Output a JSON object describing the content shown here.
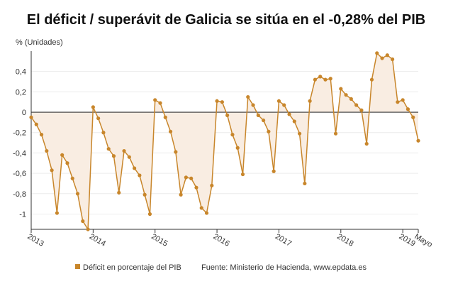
{
  "chart_data": {
    "type": "line",
    "title": "El déficit / superávit de Galicia se sitúa en el -0,28% del PIB",
    "y_label": "% (Unidades)",
    "source": "Fuente: Ministerio de Hacienda, www.epdata.es",
    "categories": [
      "2013",
      null,
      null,
      null,
      null,
      null,
      null,
      null,
      null,
      null,
      null,
      null,
      "2014",
      null,
      null,
      null,
      null,
      null,
      null,
      null,
      null,
      null,
      null,
      null,
      "2015",
      null,
      null,
      null,
      null,
      null,
      null,
      null,
      null,
      null,
      null,
      null,
      "2016",
      null,
      null,
      null,
      null,
      null,
      null,
      null,
      null,
      null,
      null,
      null,
      "2017",
      null,
      null,
      null,
      null,
      null,
      null,
      null,
      null,
      null,
      null,
      null,
      "2018",
      null,
      null,
      null,
      null,
      null,
      null,
      null,
      null,
      null,
      null,
      null,
      "2019",
      null,
      null,
      "Mayo"
    ],
    "series": [
      {
        "name": "Déficit en porcentaje del PIB",
        "color": "#c8862b",
        "values": [
          -0.05,
          -0.12,
          -0.22,
          -0.38,
          -0.57,
          -0.99,
          -0.42,
          -0.5,
          -0.65,
          -0.8,
          -1.07,
          -1.15,
          0.05,
          -0.06,
          -0.2,
          -0.36,
          -0.43,
          -0.79,
          -0.38,
          -0.44,
          -0.55,
          -0.62,
          -0.81,
          -1.0,
          0.12,
          0.09,
          -0.05,
          -0.19,
          -0.39,
          -0.81,
          -0.64,
          -0.65,
          -0.74,
          -0.94,
          -0.99,
          -0.72,
          0.11,
          0.1,
          -0.03,
          -0.22,
          -0.35,
          -0.61,
          0.15,
          0.07,
          -0.03,
          -0.08,
          -0.19,
          -0.58,
          0.11,
          0.07,
          -0.02,
          -0.09,
          -0.21,
          -0.7,
          0.11,
          0.32,
          0.35,
          0.32,
          0.33,
          -0.21,
          0.23,
          0.17,
          0.13,
          0.07,
          0.02,
          -0.31,
          0.32,
          0.58,
          0.53,
          0.56,
          0.52,
          0.1,
          0.12,
          0.03,
          -0.05,
          -0.28
        ]
      }
    ],
    "ylim": [
      -1.15,
      0.6
    ],
    "yticks": [
      {
        "value": -1,
        "label": "-1"
      },
      {
        "value": -0.8,
        "label": "-0,8"
      },
      {
        "value": -0.6,
        "label": "-0,6"
      },
      {
        "value": -0.4,
        "label": "-0,4"
      },
      {
        "value": -0.2,
        "label": "-0,2"
      },
      0,
      {
        "value": 0.2,
        "label": "0,2"
      },
      {
        "value": 0.4,
        "label": "0,4"
      }
    ],
    "grid": true,
    "area_color": "#f9ede2"
  }
}
